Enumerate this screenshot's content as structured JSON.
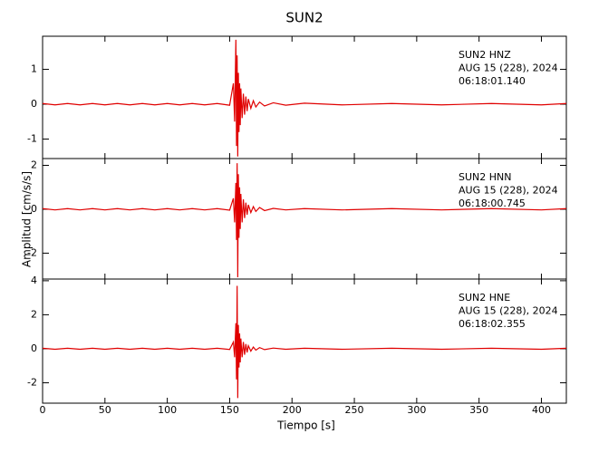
{
  "title": "SUN2",
  "ylabel": "Amplitud [cm/s/s]",
  "xlabel": "Tiempo [s]",
  "chart_data": [
    {
      "type": "line",
      "annotation": [
        "SUN2   HNZ",
        "AUG 15 (228), 2024",
        "06:18:01.140"
      ],
      "ylim": [
        -1.56,
        1.95
      ],
      "yticks": [
        -1,
        0,
        1
      ],
      "xlim": [
        0,
        420
      ],
      "series": [
        {
          "color": "#e00000",
          "x": [
            0,
            10,
            20,
            30,
            40,
            50,
            60,
            70,
            80,
            90,
            100,
            110,
            120,
            130,
            140,
            150,
            153,
            154,
            155,
            155.5,
            156,
            156.5,
            157,
            157.5,
            158,
            158.5,
            159,
            160,
            161,
            162,
            163,
            164,
            165,
            167,
            169,
            171,
            174,
            178,
            185,
            195,
            210,
            240,
            280,
            320,
            360,
            400,
            420
          ],
          "values": [
            0.02,
            -0.02,
            0.02,
            -0.02,
            0.02,
            -0.02,
            0.02,
            -0.02,
            0.02,
            -0.02,
            0.02,
            -0.02,
            0.02,
            -0.02,
            0.02,
            -0.03,
            0.6,
            -0.5,
            1.85,
            -1.2,
            1.4,
            -1.5,
            0.9,
            -0.8,
            0.6,
            -0.6,
            0.45,
            -0.4,
            0.3,
            -0.3,
            0.22,
            -0.2,
            0.15,
            -0.12,
            0.1,
            -0.08,
            0.06,
            -0.05,
            0.04,
            -0.03,
            0.03,
            -0.02,
            0.02,
            -0.02,
            0.02,
            -0.02,
            0.02
          ]
        }
      ]
    },
    {
      "type": "line",
      "annotation": [
        "SUN2   HNN",
        "AUG 15 (228), 2024",
        "06:18:00.745"
      ],
      "ylim": [
        -3.18,
        2.31
      ],
      "yticks": [
        -2,
        0,
        2
      ],
      "xlim": [
        0,
        420
      ],
      "series": [
        {
          "color": "#e00000",
          "x": [
            0,
            10,
            20,
            30,
            40,
            50,
            60,
            70,
            80,
            90,
            100,
            110,
            120,
            130,
            140,
            150,
            153,
            154,
            155,
            155.5,
            156,
            156.5,
            157,
            157.5,
            158,
            158.5,
            159,
            160,
            161,
            162,
            163,
            164,
            165,
            167,
            169,
            171,
            174,
            178,
            185,
            195,
            210,
            240,
            280,
            320,
            360,
            400,
            420
          ],
          "values": [
            0.03,
            -0.03,
            0.03,
            -0.03,
            0.03,
            -0.03,
            0.03,
            -0.03,
            0.03,
            -0.03,
            0.03,
            -0.03,
            0.03,
            -0.03,
            0.03,
            -0.04,
            0.5,
            -0.6,
            1.2,
            -1.4,
            2.1,
            -3.1,
            1.6,
            -1.3,
            1.0,
            -0.9,
            0.7,
            -0.6,
            0.45,
            -0.4,
            0.3,
            -0.25,
            0.2,
            -0.15,
            0.12,
            -0.1,
            0.08,
            -0.06,
            0.04,
            -0.03,
            0.03,
            -0.03,
            0.03,
            -0.03,
            0.03,
            -0.03,
            0.03
          ]
        }
      ]
    },
    {
      "type": "line",
      "annotation": [
        "SUN2   HNE",
        "AUG 15 (228), 2024",
        "06:18:02.355"
      ],
      "ylim": [
        -3.2,
        4.1
      ],
      "yticks": [
        -2,
        0,
        2,
        4
      ],
      "xlim": [
        0,
        420
      ],
      "xticks": [
        0,
        50,
        100,
        150,
        200,
        250,
        300,
        350,
        400
      ],
      "series": [
        {
          "color": "#e00000",
          "x": [
            0,
            10,
            20,
            30,
            40,
            50,
            60,
            70,
            80,
            90,
            100,
            110,
            120,
            130,
            140,
            150,
            153,
            154,
            155,
            155.5,
            156,
            156.5,
            157,
            157.5,
            158,
            158.5,
            159,
            160,
            161,
            162,
            163,
            164,
            165,
            167,
            169,
            171,
            174,
            178,
            185,
            195,
            210,
            240,
            280,
            320,
            360,
            400,
            420
          ],
          "values": [
            0.03,
            -0.03,
            0.03,
            -0.03,
            0.03,
            -0.03,
            0.03,
            -0.03,
            0.03,
            -0.03,
            0.03,
            -0.03,
            0.03,
            -0.03,
            0.03,
            -0.04,
            0.4,
            -0.5,
            1.5,
            -1.8,
            3.7,
            -2.9,
            1.4,
            -1.1,
            0.9,
            -0.8,
            0.6,
            -0.5,
            0.4,
            -0.35,
            0.28,
            -0.22,
            0.18,
            -0.14,
            0.1,
            -0.08,
            0.07,
            -0.05,
            0.04,
            -0.03,
            0.03,
            -0.03,
            0.03,
            -0.03,
            0.03,
            -0.03,
            0.03
          ]
        }
      ]
    }
  ]
}
